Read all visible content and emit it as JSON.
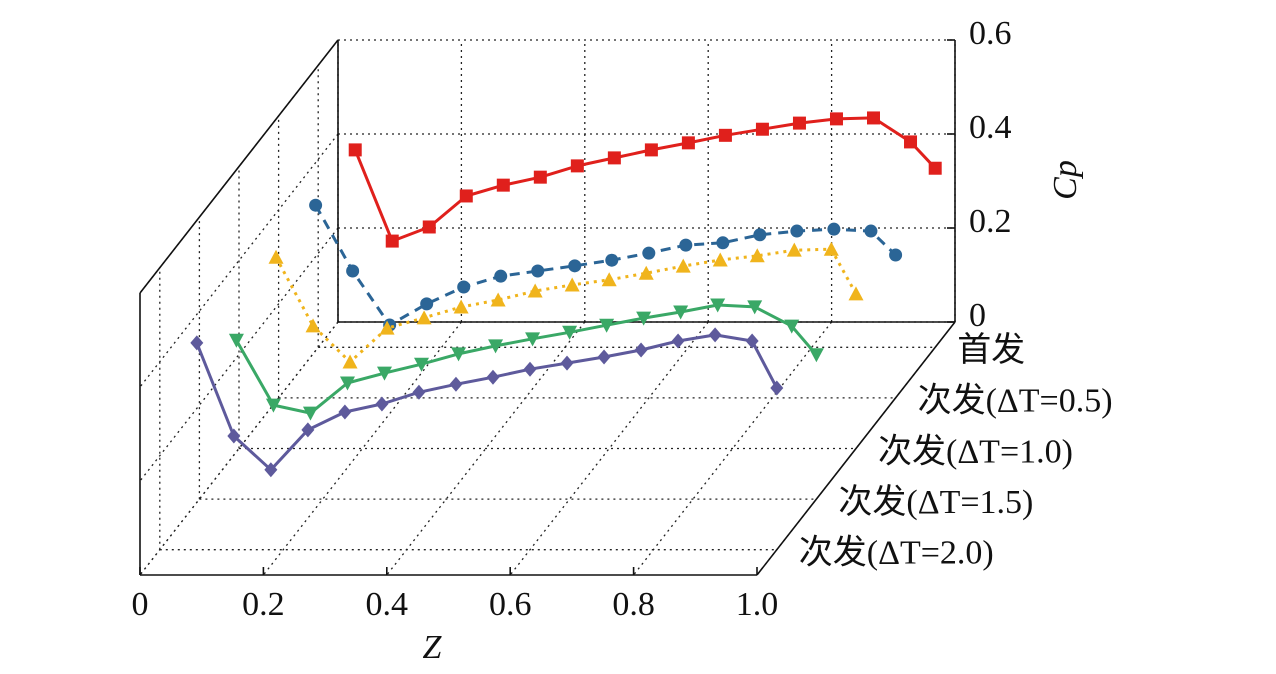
{
  "chart_data": {
    "type": "line3d",
    "xlabel": "Z",
    "ylabel": "Cp",
    "x": [
      0.06,
      0.12,
      0.18,
      0.24,
      0.3,
      0.36,
      0.42,
      0.48,
      0.54,
      0.6,
      0.66,
      0.72,
      0.78,
      0.84,
      0.9,
      0.96,
      1.0
    ],
    "xlim": [
      0,
      1
    ],
    "xticks": [
      0,
      0.2,
      0.4,
      0.6,
      0.8,
      {
        "value": 1,
        "label": "1.0"
      }
    ],
    "ylim": [
      0,
      0.6
    ],
    "yticks": [
      0,
      0.2,
      0.4,
      0.6
    ],
    "grid": true,
    "series": [
      {
        "name": "首发",
        "color": "#e0201c",
        "linestyle": "solid",
        "marker": "square",
        "values": [
          0.42,
          0.226,
          0.256,
          0.322,
          0.345,
          0.362,
          0.386,
          0.403,
          0.42,
          0.435,
          0.451,
          0.464,
          0.477,
          0.486,
          0.488,
          0.437,
          0.381
        ]
      },
      {
        "name": "次发(ΔT=0.5)",
        "color": "#2b6596",
        "linestyle": "dashed",
        "marker": "circle",
        "values": [
          0.41,
          0.27,
          0.155,
          0.2,
          0.236,
          0.259,
          0.27,
          0.281,
          0.293,
          0.308,
          0.325,
          0.33,
          0.347,
          0.355,
          0.359,
          0.355,
          0.304
        ]
      },
      {
        "name": "次发(ΔT=1.0)",
        "color": "#f0b41c",
        "linestyle": "dotted",
        "marker": "triangle-up",
        "values": [
          0.407,
          0.261,
          0.184,
          0.256,
          0.278,
          0.301,
          0.316,
          0.335,
          0.348,
          0.359,
          0.373,
          0.388,
          0.401,
          0.41,
          0.422,
          0.424,
          0.329
        ]
      },
      {
        "name": "次发(ΔT=1.5)",
        "color": "#3aa866",
        "linestyle": "solid",
        "marker": "triangle-down",
        "values": [
          0.338,
          0.2,
          0.183,
          0.247,
          0.268,
          0.287,
          0.309,
          0.326,
          0.341,
          0.355,
          0.37,
          0.385,
          0.398,
          0.413,
          0.409,
          0.368,
          0.307
        ]
      },
      {
        "name": "次发(ΔT=2.0)",
        "color": "#5e5a9c",
        "linestyle": "solid",
        "marker": "diamond",
        "values": [
          0.44,
          0.242,
          0.17,
          0.255,
          0.293,
          0.31,
          0.335,
          0.352,
          0.367,
          0.384,
          0.397,
          0.41,
          0.425,
          0.444,
          0.457,
          0.444,
          0.344
        ]
      }
    ]
  }
}
